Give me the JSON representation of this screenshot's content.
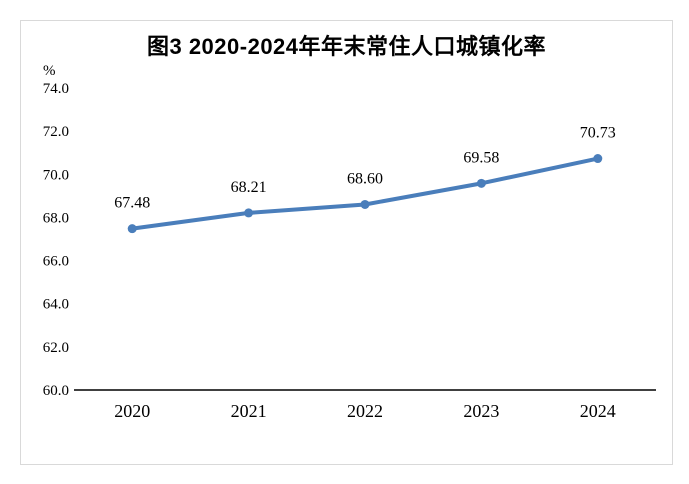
{
  "chart_data": {
    "type": "line",
    "title": "图3 2020-2024年年末常住人口城镇化率",
    "unit_label": "%",
    "categories": [
      "2020",
      "2021",
      "2022",
      "2023",
      "2024"
    ],
    "values": [
      67.48,
      68.21,
      68.6,
      69.58,
      70.73
    ],
    "data_labels": [
      "67.48",
      "68.21",
      "68.60",
      "69.58",
      "70.73"
    ],
    "ylim": [
      60,
      74
    ],
    "ytick_step": 2,
    "ytick_labels": [
      "60.0",
      "62.0",
      "64.0",
      "66.0",
      "68.0",
      "70.0",
      "72.0",
      "74.0"
    ],
    "xlabel": "",
    "ylabel": "%",
    "grid": false,
    "legend": "none",
    "colors": {
      "line": "#4a7ebb",
      "marker": "#4a7ebb",
      "axis": "#000000",
      "frame_border": "#d9d9d9",
      "text": "#000000"
    }
  }
}
